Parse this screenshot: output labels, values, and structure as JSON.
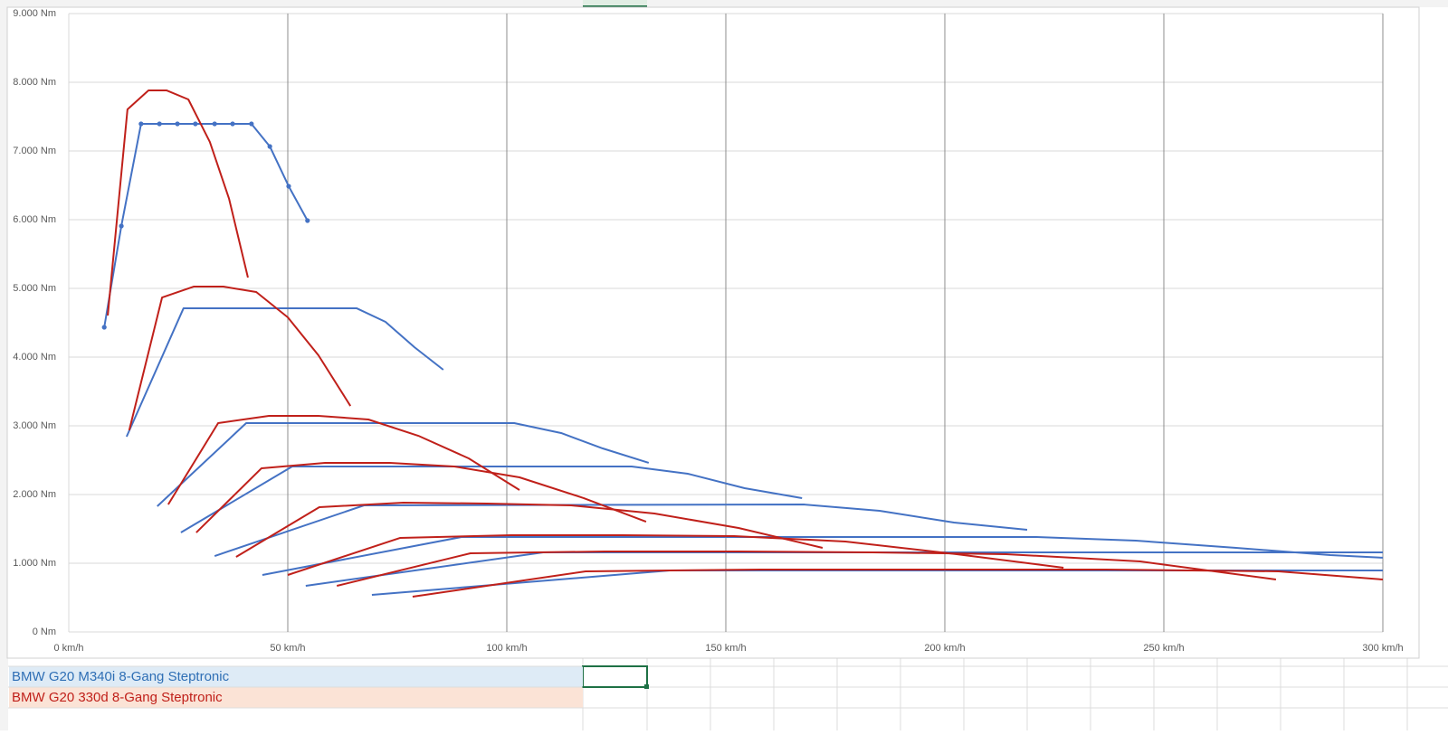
{
  "chart_data": {
    "type": "scatter-line",
    "xlim": [
      0,
      300
    ],
    "xticks": [
      {
        "value": 0,
        "label": "0 km/h"
      },
      {
        "value": 50,
        "label": "50 km/h"
      },
      {
        "value": 100,
        "label": "100 km/h"
      },
      {
        "value": 150,
        "label": "150 km/h"
      },
      {
        "value": 200,
        "label": "200 km/h"
      },
      {
        "value": 250,
        "label": "250 km/h"
      },
      {
        "value": 300,
        "label": "300 km/h"
      }
    ],
    "ylim": [
      0,
      9000
    ],
    "yticks": [
      {
        "value": 0,
        "label": "0 Nm"
      },
      {
        "value": 1000,
        "label": "1.000 Nm"
      },
      {
        "value": 2000,
        "label": "2.000 Nm"
      },
      {
        "value": 3000,
        "label": "3.000 Nm"
      },
      {
        "value": 4000,
        "label": "4.000 Nm"
      },
      {
        "value": 5000,
        "label": "5.000 Nm"
      },
      {
        "value": 6000,
        "label": "6.000 Nm"
      },
      {
        "value": 7000,
        "label": "7.000 Nm"
      },
      {
        "value": 8000,
        "label": "8.000 Nm"
      },
      {
        "value": 9000,
        "label": "9.000 Nm"
      }
    ],
    "grid": true,
    "series": [
      {
        "color": "#4472c4",
        "markers": true,
        "x": [
          8.1,
          12.0,
          16.5,
          20.7,
          24.8,
          28.9,
          33.3,
          37.4,
          41.7,
          45.9,
          50.2,
          54.5
        ],
        "values": [
          4434,
          5908,
          7395,
          7395,
          7395,
          7395,
          7395,
          7395,
          7395,
          7066,
          6487,
          5987
        ]
      },
      {
        "color": "#4472c4",
        "x": [
          13.2,
          26.2,
          65.7,
          72.3,
          78.9,
          85.5
        ],
        "values": [
          2842,
          4711,
          4711,
          4513,
          4145,
          3816
        ]
      },
      {
        "color": "#4472c4",
        "x": [
          20.2,
          40.5,
          101.7,
          112.4,
          121.9,
          132.4
        ],
        "values": [
          1829,
          3039,
          3039,
          2895,
          2671,
          2461
        ]
      },
      {
        "color": "#4472c4",
        "x": [
          25.6,
          51.0,
          128.5,
          141.3,
          154.3,
          167.4
        ],
        "values": [
          1447,
          2408,
          2408,
          2303,
          2092,
          1947
        ]
      },
      {
        "color": "#4472c4",
        "x": [
          33.3,
          67.4,
          167.8,
          185.1,
          202.1,
          218.8
        ],
        "values": [
          1105,
          1842,
          1855,
          1763,
          1592,
          1487
        ]
      },
      {
        "color": "#4472c4",
        "x": [
          44.2,
          89.7,
          220.9,
          243.6,
          266.5,
          288.0,
          300.0
        ],
        "values": [
          829,
          1382,
          1382,
          1329,
          1224,
          1118,
          1080
        ]
      },
      {
        "color": "#4472c4",
        "x": [
          54.1,
          108.3,
          300.0
        ],
        "values": [
          671,
          1158,
          1158
        ]
      },
      {
        "color": "#4472c4",
        "x": [
          69.2,
          137.2,
          300.0
        ],
        "values": [
          539,
          895,
          895
        ]
      },
      {
        "color": "#c0201a",
        "x": [
          8.9,
          13.4,
          18.2,
          22.3,
          27.3,
          32.2,
          36.6,
          40.9
        ],
        "values": [
          4605,
          7605,
          7882,
          7882,
          7750,
          7132,
          6303,
          5158
        ]
      },
      {
        "color": "#c0201a",
        "x": [
          13.8,
          21.3,
          28.5,
          35.3,
          42.8,
          50.0,
          57.0,
          64.3
        ],
        "values": [
          2934,
          4868,
          5026,
          5026,
          4947,
          4579,
          4026,
          3289
        ]
      },
      {
        "color": "#c0201a",
        "x": [
          22.7,
          34.1,
          45.7,
          57.0,
          68.4,
          79.8,
          91.3,
          102.9
        ],
        "values": [
          1855,
          3039,
          3145,
          3145,
          3092,
          2855,
          2526,
          2066
        ]
      },
      {
        "color": "#c0201a",
        "x": [
          29.1,
          44.0,
          58.5,
          73.3,
          88.0,
          102.9,
          117.6,
          131.8
        ],
        "values": [
          1447,
          2382,
          2461,
          2461,
          2408,
          2250,
          1947,
          1605
        ]
      },
      {
        "color": "#c0201a",
        "x": [
          38.2,
          57.2,
          76.4,
          95.5,
          114.7,
          133.7,
          152.9,
          172.1
        ],
        "values": [
          1092,
          1816,
          1882,
          1868,
          1842,
          1724,
          1513,
          1224
        ]
      },
      {
        "color": "#c0201a",
        "x": [
          50.0,
          75.6,
          101.0,
          126.4,
          151.9,
          177.3,
          202.7,
          227.1
        ],
        "values": [
          829,
          1368,
          1408,
          1408,
          1395,
          1316,
          1132,
          934
        ]
      },
      {
        "color": "#c0201a",
        "x": [
          61.2,
          91.7,
          122.3,
          152.9,
          183.5,
          214.0,
          244.6,
          275.6
        ],
        "values": [
          671,
          1145,
          1171,
          1171,
          1158,
          1132,
          1026,
          763
        ]
      },
      {
        "color": "#c0201a",
        "x": [
          78.5,
          118.0,
          157.9,
          197.3,
          236.8,
          276.2,
          300.0
        ],
        "values": [
          513,
          882,
          908,
          908,
          908,
          882,
          763
        ]
      }
    ]
  },
  "sheet_rows": [
    {
      "text": "BMW G20 M340i 8-Gang Steptronic",
      "color": "#2f6fb5",
      "background": "#deebf6"
    },
    {
      "text": "BMW G20 330d 8-Gang Steptronic",
      "color": "#c0201a",
      "background": "#fbe3d6"
    }
  ]
}
